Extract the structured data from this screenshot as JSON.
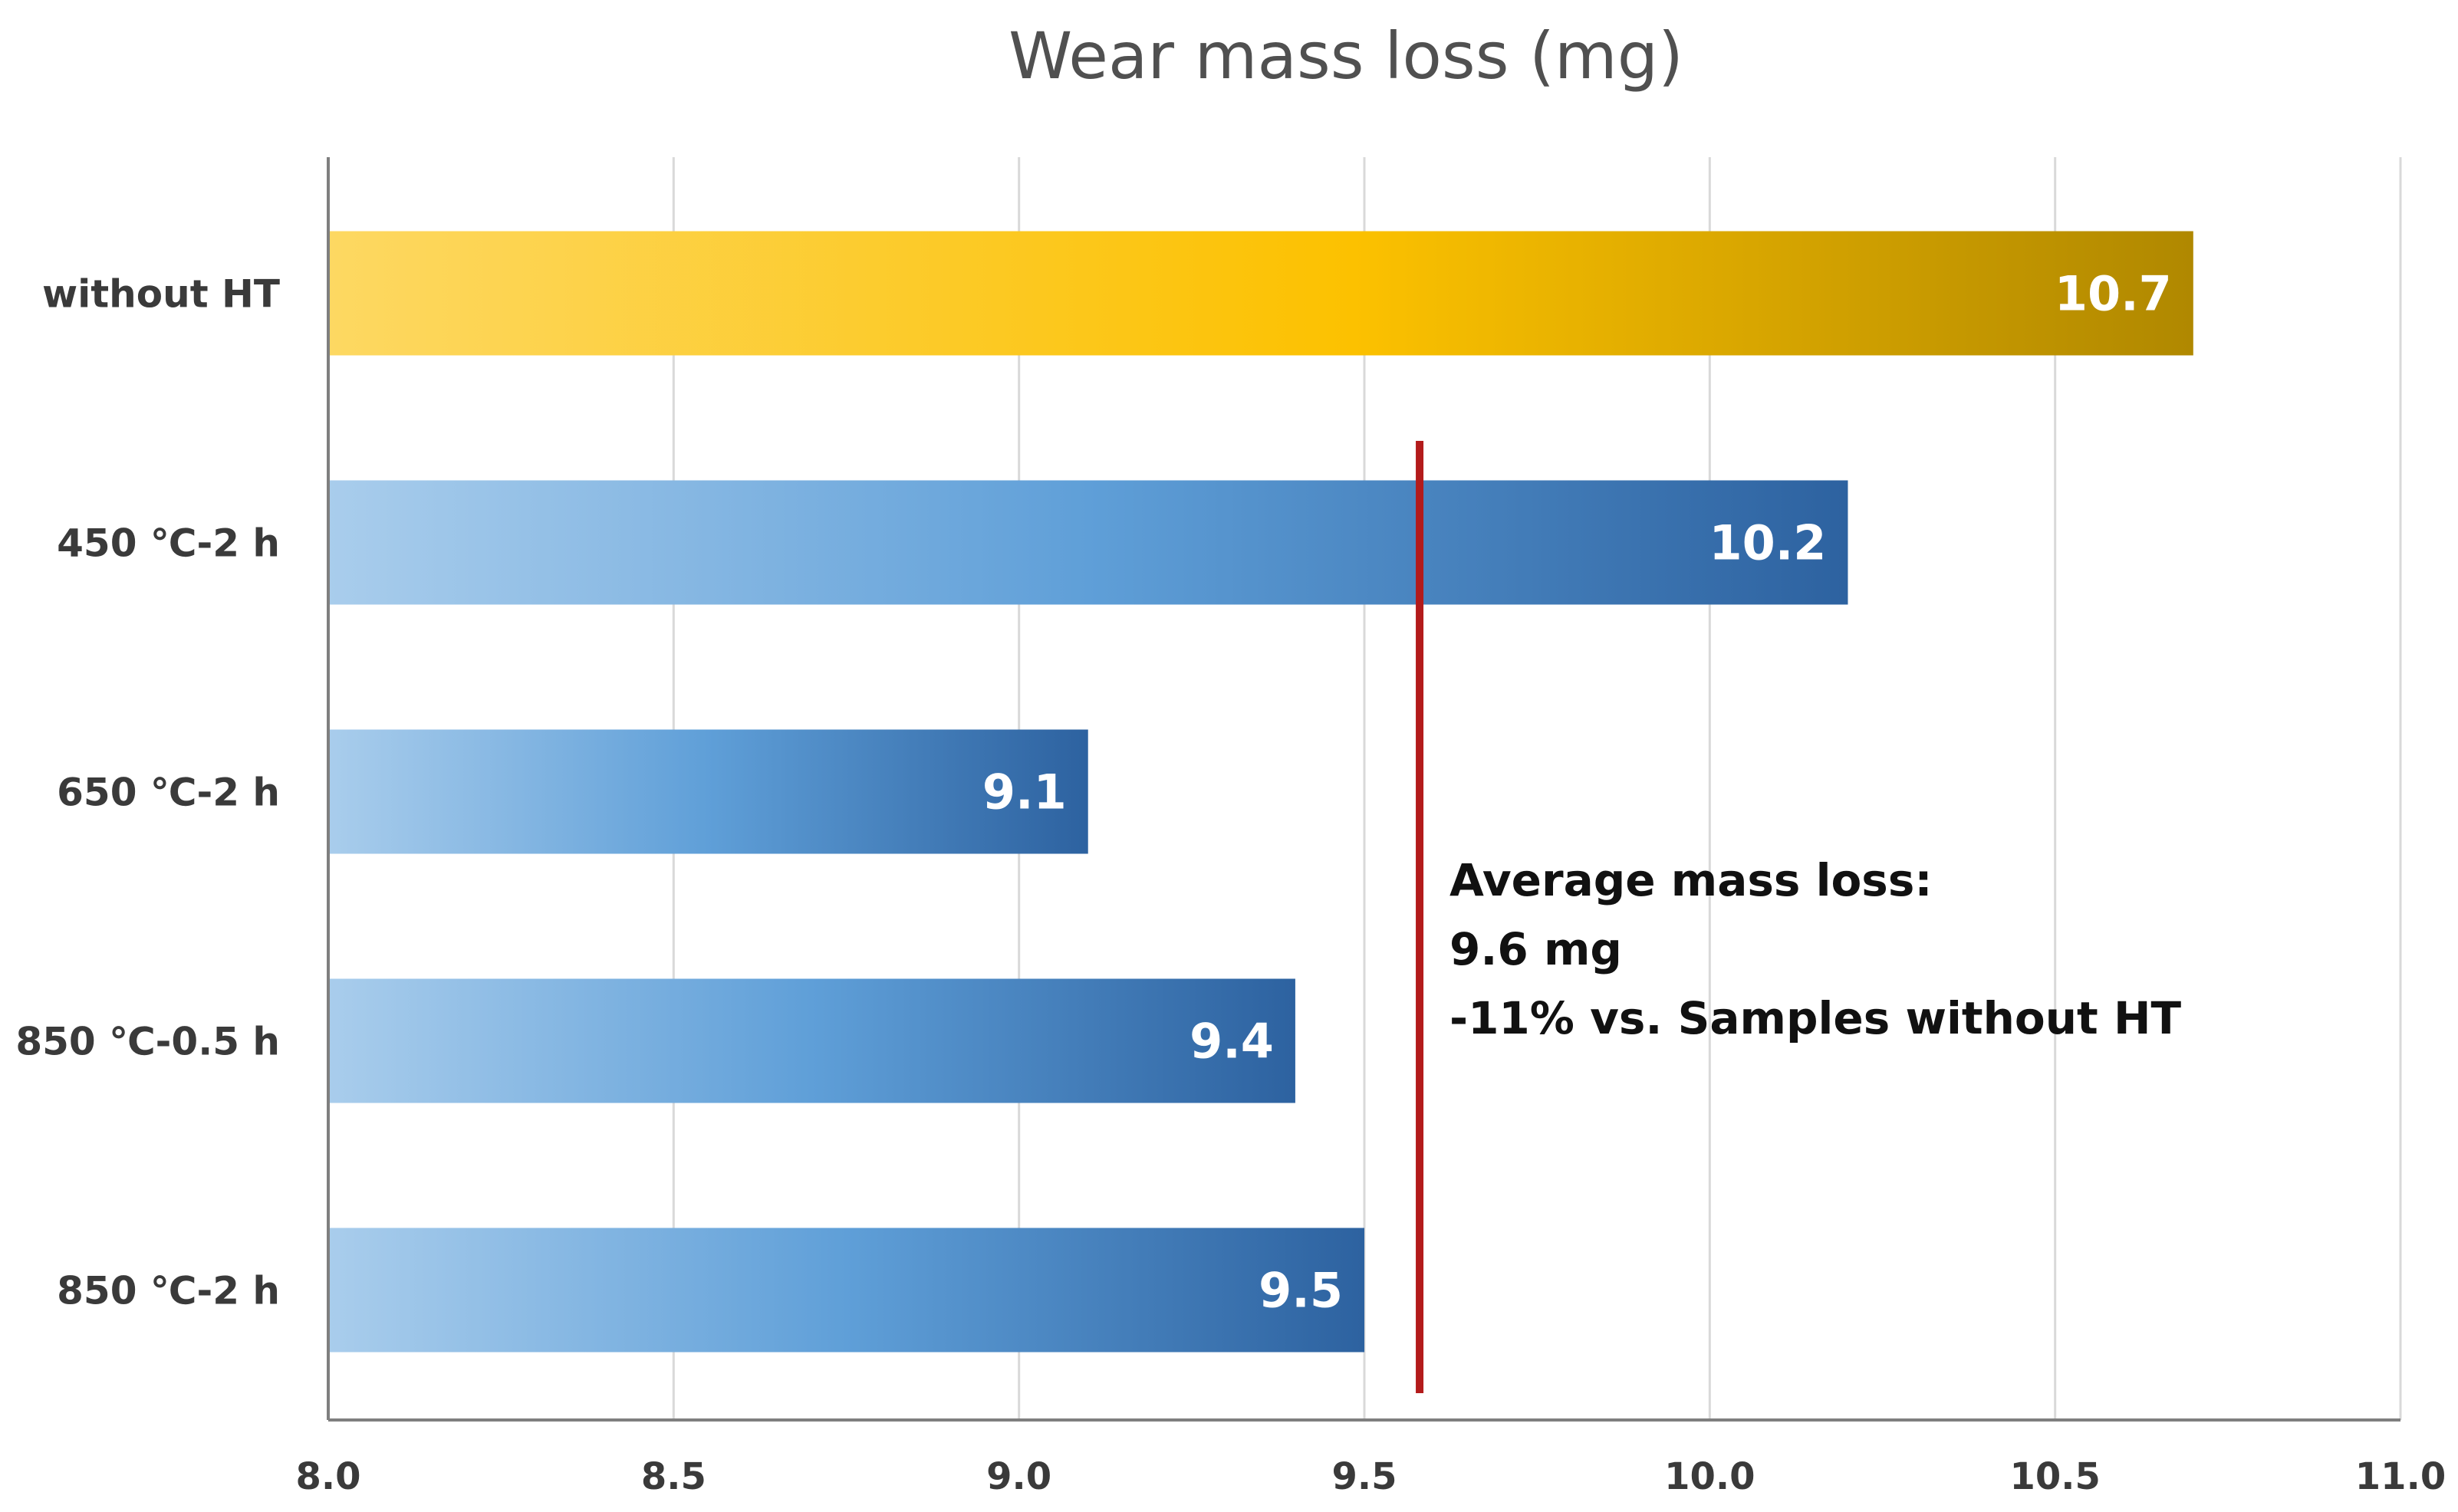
{
  "chart_data": {
    "type": "bar",
    "orientation": "horizontal",
    "title": "Wear mass loss (mg)",
    "xlabel": "",
    "ylabel": "",
    "categories": [
      "without HT",
      "450 ℃-2 h",
      "650 ℃-2 h",
      "850 ℃-0.5 h",
      "850 ℃-2 h"
    ],
    "values": [
      10.7,
      10.2,
      9.1,
      9.4,
      9.5
    ],
    "data_labels": [
      "10.7",
      "10.2",
      "9.1",
      "9.4",
      "9.5"
    ],
    "xlim": [
      8.0,
      11.0
    ],
    "xticks": [
      "8.0",
      "8.5",
      "9.0",
      "9.5",
      "10.0",
      "10.5",
      "11.0"
    ],
    "grid": true,
    "bar_colors": [
      "gold-gradient",
      "blue-gradient",
      "blue-gradient",
      "blue-gradient",
      "blue-gradient"
    ],
    "reference_line": {
      "value": 9.58,
      "color": "#b31b1b",
      "label": "Average mass loss"
    },
    "annotation": [
      "Average mass loss:",
      "9.6 mg",
      "-11% vs. Samples without HT"
    ]
  },
  "colors": {
    "gold_start": "#fdd862",
    "gold_mid": "#fcc100",
    "gold_end": "#b08800",
    "blue_start": "#a9cdec",
    "blue_mid": "#5f9fd8",
    "blue_end": "#2d62a0",
    "grid": "#d9d9d9",
    "axis": "#7f7f7f",
    "avg_line": "#b31b1b"
  }
}
